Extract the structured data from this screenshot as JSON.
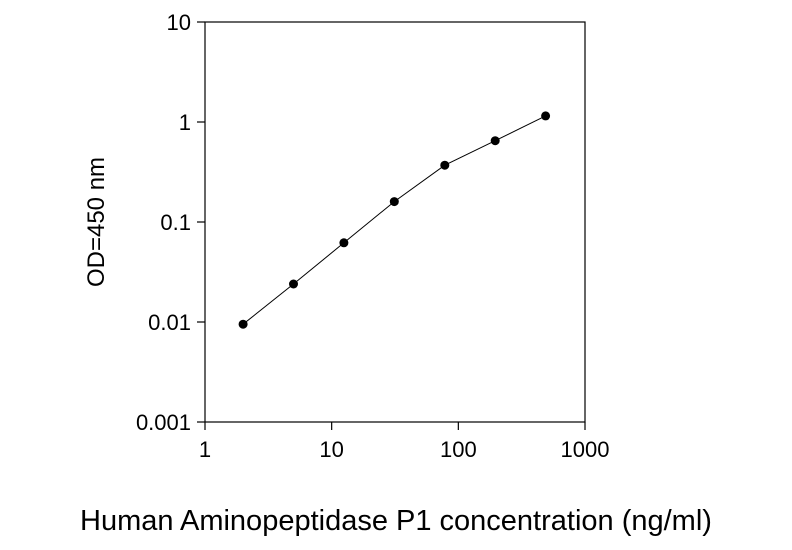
{
  "chart_data": {
    "type": "line",
    "title": "",
    "xlabel": "Human Aminopeptidase P1 concentration (ng/ml)",
    "ylabel": "OD=450 nm",
    "xscale": "log",
    "yscale": "log",
    "xlim": [
      1,
      1000
    ],
    "ylim": [
      0.001,
      10
    ],
    "x_ticks": [
      "1",
      "10",
      "100",
      "1000"
    ],
    "y_ticks": [
      "0.001",
      "0.01",
      "0.1",
      "1",
      "10"
    ],
    "grid": false,
    "legend": "none",
    "marker": "filled circle",
    "series": [
      {
        "x": [
          2,
          5,
          12.5,
          31.25,
          78.125,
          195.3,
          488.3
        ],
        "y": [
          0.0095,
          0.024,
          0.062,
          0.16,
          0.37,
          0.65,
          1.15
        ]
      }
    ],
    "colors": {
      "line": "#000000",
      "marker": "#000000",
      "axis": "#000000"
    }
  }
}
